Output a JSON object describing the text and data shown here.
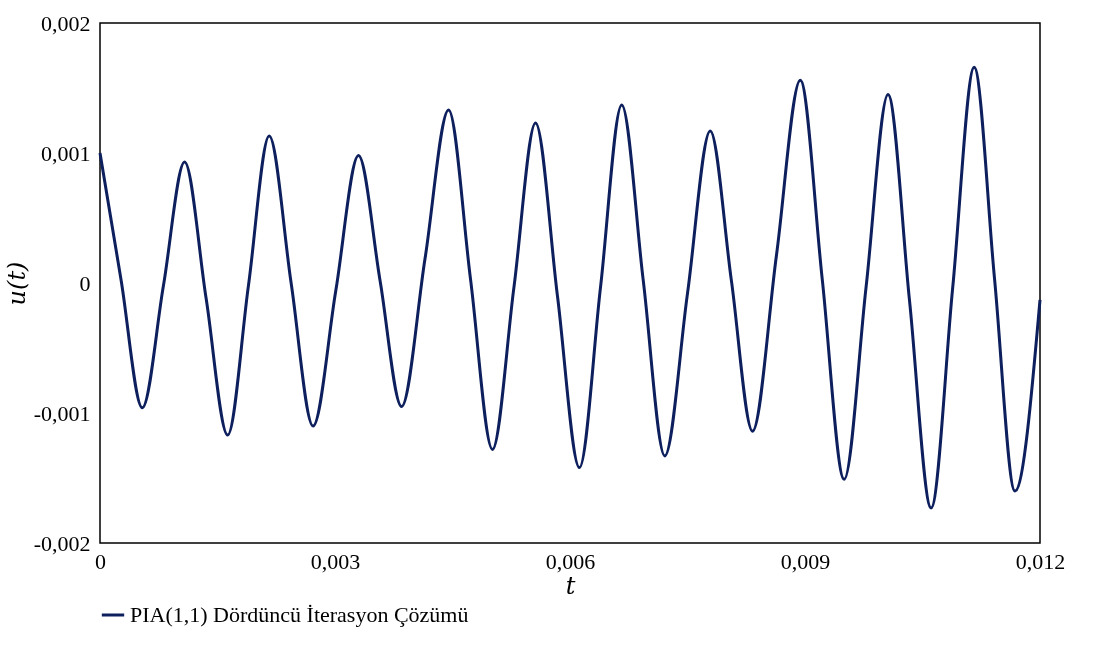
{
  "chart_data": {
    "type": "line",
    "xlabel": "t",
    "ylabel": "u(t)",
    "legend": "bottom",
    "grid": false,
    "marker": "none",
    "line_style": "solid",
    "xlim": [
      0,
      0.012
    ],
    "ylim": [
      -0.002,
      0.002
    ],
    "xticks": [
      0,
      {
        "value": 0.003,
        "label": "0,003"
      },
      {
        "value": 0.006,
        "label": "0,006"
      },
      {
        "value": 0.009,
        "label": "0,009"
      },
      {
        "value": 0.012,
        "label": "0,012"
      }
    ],
    "yticks": [
      {
        "value": -0.002,
        "label": "-0,002"
      },
      {
        "value": -0.001,
        "label": "-0,001"
      },
      0,
      {
        "value": 0.001,
        "label": "0,001"
      },
      {
        "value": 0.002,
        "label": "0,002"
      }
    ],
    "x": [
      0,
      0.00027,
      0.00054,
      0.00081,
      0.00108,
      0.001355,
      0.00163,
      0.001895,
      0.00216,
      0.00244,
      0.00272,
      0.00301,
      0.0033,
      0.003575,
      0.00385,
      0.00415,
      0.00445,
      0.00473,
      0.00501,
      0.005285,
      0.00556,
      0.00584,
      0.00612,
      0.00639,
      0.00666,
      0.006935,
      0.00721,
      0.0075,
      0.00779,
      0.00806,
      0.00833,
      0.008635,
      0.00894,
      0.00922,
      0.0095,
      0.00978,
      0.01006,
      0.010335,
      0.01061,
      0.010885,
      0.01116,
      0.01142,
      0.01168,
      0.012
    ],
    "series": [
      {
        "name": "PIA(1,1) Dördüncü İterasyon Çözümü",
        "color": "#0d1f5c",
        "values": [
          0.001,
          2e-05,
          -0.00096,
          -2e-05,
          0.00093,
          -0.00012,
          -0.00117,
          -2e-05,
          0.00113,
          0,
          -0.0011,
          -6e-05,
          0.00098,
          2e-05,
          -0.00095,
          0.00019,
          0.00133,
          3e-05,
          -0.00128,
          -3e-05,
          0.00123,
          -0.0001,
          -0.00142,
          -3e-05,
          0.00137,
          2e-05,
          -0.00133,
          -8e-05,
          0.00117,
          2e-05,
          -0.00114,
          0.00021,
          0.00156,
          3e-05,
          -0.00151,
          -3e-05,
          0.00145,
          -0.00014,
          -0.00173,
          -4e-05,
          0.00166,
          3e-05,
          -0.0016,
          -0.00013
        ]
      }
    ]
  }
}
